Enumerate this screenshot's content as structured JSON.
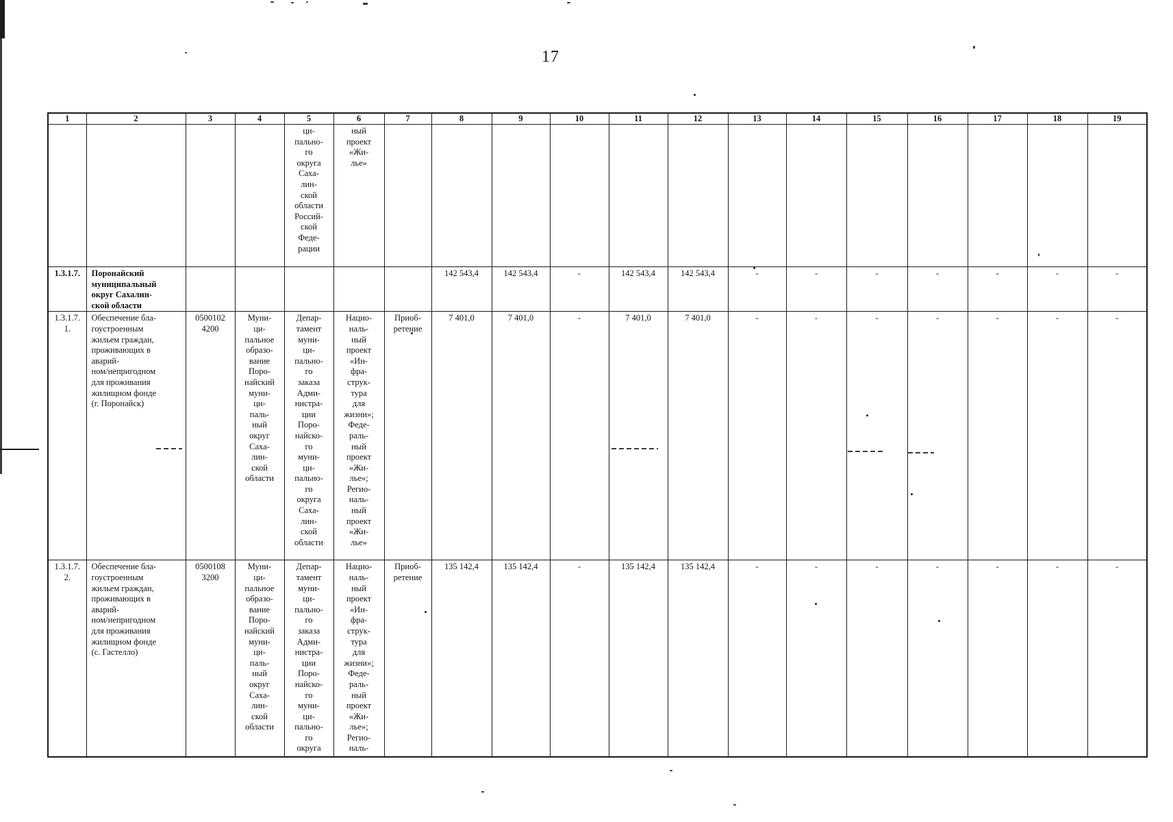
{
  "page": {
    "number": "17"
  },
  "table": {
    "column_headers": [
      "1",
      "2",
      "3",
      "4",
      "5",
      "6",
      "7",
      "8",
      "9",
      "10",
      "11",
      "12",
      "13",
      "14",
      "15",
      "16",
      "17",
      "18",
      "19"
    ],
    "rows": [
      {
        "name": "carryover-row",
        "cells": [
          "",
          "",
          "",
          "",
          "ци-\nпально-\nго\nокруга\nСаха-\nлин-\nской\nобласти\nРоссий-\nской\nФеде-\nрации",
          "ный\nпроект\n«Жи-\nлье»",
          "",
          "",
          "",
          "",
          "",
          "",
          "",
          "",
          "",
          "",
          "",
          "",
          ""
        ]
      },
      {
        "name": "row-1-3-1-7",
        "emphasis": [
          0,
          1
        ],
        "cells": [
          "1.3.1.7.",
          "Поронайский\nмуниципальный\nокруг Сахалин-\nской области",
          "",
          "",
          "",
          "",
          "",
          "142 543,4",
          "142 543,4",
          "-",
          "142 543,4",
          "142 543,4",
          "-",
          "-",
          "-",
          "-",
          "-",
          "-",
          "-"
        ]
      },
      {
        "name": "row-1-3-1-7-1",
        "cells": [
          "1.3.1.7.\n1.",
          "Обеспечение бла-\nгоустроенным\nжильем граждан,\nпроживающих в\nаварий-\nном/непригодном\nдля проживания\nжилищном фонде\n(г. Поронайск)",
          "0500102\n4200",
          "Муни-\nци-\nпальное\nобразо-\nвание\nПоро-\nнайский\nмуни-\nци-\nпаль-\nный\nокруг\nСаха-\nлин-\nской\nобласти",
          "Депар-\nтамент\nмуни-\nци-\nпально-\nго\nзаказа\nАдми-\nнистра-\nции\nПоро-\nнайско-\nго\nмуни-\nци-\nпально-\nго\nокруга\nСаха-\nлин-\nской\nобласти",
          "Нацио-\nналь-\nный\nпроект\n«Ин-\nфра-\nструк-\nтура\nдля\nжизни»;\nФеде-\nраль-\nный\nпроект\n«Жи-\nлье»;\nРегио-\nналь-\nный\nпроект\n«Жи-\nлье»",
          "Приоб-\nретение",
          "7 401,0",
          "7 401,0",
          "-",
          "7 401,0",
          "7 401,0",
          "-",
          "-",
          "-",
          "-",
          "-",
          "-",
          "-"
        ]
      },
      {
        "name": "row-1-3-1-7-2",
        "cells": [
          "1.3.1.7.\n2.",
          "Обеспечение бла-\nгоустроенным\nжильем граждан,\nпроживающих в\nаварий-\nном/непригодном\nдля проживания\nжилищном фонде\n(с. Гастелло)",
          "0500108\n3200",
          "Муни-\nци-\nпальное\nобразо-\nвание\nПоро-\nнайский\nмуни-\nци-\nпаль-\nный\nокруг\nСаха-\nлин-\nской\nобласти",
          "Депар-\nтамент\nмуни-\nци-\nпально-\nго\nзаказа\nАдми-\nнистра-\nции\nПоро-\nнайско-\nго\nмуни-\nци-\nпально-\nго\nокруга",
          "Нацио-\nналь-\nный\nпроект\n«Ин-\nфра-\nструк-\nтура\nдля\nжизни»;\nФеде-\nраль-\nный\nпроект\n«Жи-\nлье»;\nРегио-\nналь-",
          "Приоб-\nретение",
          "135 142,4",
          "135 142,4",
          "-",
          "135 142,4",
          "135 142,4",
          "-",
          "-",
          "-",
          "-",
          "-",
          "-",
          "-"
        ]
      }
    ]
  }
}
